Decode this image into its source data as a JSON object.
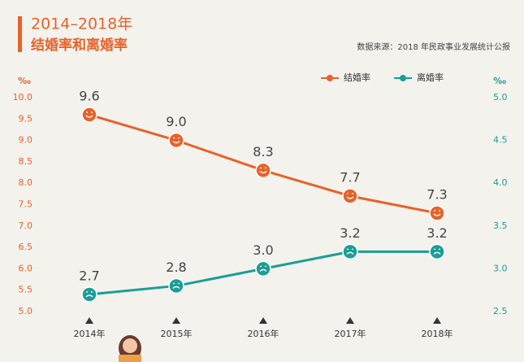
{
  "chart_data": {
    "type": "line",
    "title": "2014–2018年",
    "subtitle": "结婚率和离婚率",
    "source": "数据来源：2018 年民政事业发展统计公报",
    "ylabel": "‰",
    "y2label": "‰",
    "categories": [
      "2014年",
      "2015年",
      "2016年",
      "2017年",
      "2018年"
    ],
    "series": [
      {
        "name": "结婚率",
        "color": "#e8622a",
        "values": [
          9.6,
          9.0,
          8.3,
          7.7,
          7.3
        ],
        "value_labels": [
          "9.6",
          "9.0",
          "8.3",
          "7.7",
          "7.3"
        ]
      },
      {
        "name": "离婚率",
        "color": "#1a9e96",
        "axis": "y2",
        "values": [
          2.7,
          2.8,
          3.0,
          3.2,
          3.2
        ],
        "value_labels": [
          "2.7",
          "2.8",
          "3.0",
          "3.2",
          "3.2"
        ]
      }
    ],
    "ylim": [
      5,
      10
    ],
    "yticks": [
      {
        "value": 5,
        "label": "5.0"
      },
      5.5,
      {
        "value": 6,
        "label": "6.0"
      },
      6.5,
      {
        "value": 7,
        "label": "7.0"
      },
      7.5,
      {
        "value": 8,
        "label": "8.0"
      },
      8.5,
      {
        "value": 9,
        "label": "9.0"
      },
      9.5,
      {
        "value": 10,
        "label": "10.0"
      }
    ],
    "y2lim": [
      2.5,
      5
    ],
    "y2ticks": [
      2.5,
      {
        "value": 3,
        "label": "3.0"
      },
      3.5,
      {
        "value": 4,
        "label": "4.0"
      },
      4.5,
      {
        "value": 5,
        "label": "5.0"
      }
    ],
    "legend": "top-right"
  }
}
